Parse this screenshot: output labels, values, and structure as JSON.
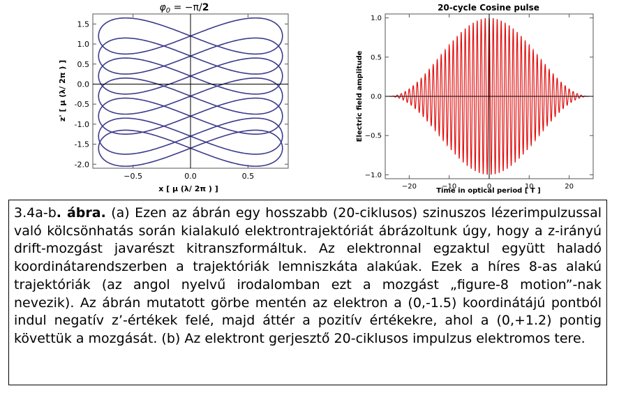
{
  "chart_data": [
    {
      "type": "line",
      "title": "φ0 = −π/2",
      "title_parts": {
        "phi": "φ",
        "sub": "0",
        "rest": " = −π/",
        "bold": "2"
      },
      "xlabel": "x [ μ (λ/ 2π ) ]",
      "ylabel": "z' [ μ (λ/ 2π ) ]",
      "xlim": [
        -0.85,
        0.85
      ],
      "ylim": [
        -2.1,
        1.75
      ],
      "xticks": [
        -0.5,
        0.0,
        0.5
      ],
      "xtick_labels": [
        "−0.5",
        "0.0",
        "0.5"
      ],
      "yticks": [
        1.5,
        1.0,
        0.5,
        0.0,
        -0.5,
        -1.0,
        -1.5,
        -2.0
      ],
      "ytick_labels": [
        "1.5",
        "1.0",
        "0.5",
        "0.0",
        "-0.5",
        "-1.0",
        "-1.5",
        "-2.0"
      ],
      "color": "#3b3b8c",
      "series": [
        {
          "center_z": 1.2,
          "x_amplitude": 0.8,
          "z_half_height": 0.45
        },
        {
          "center_z": 0.7,
          "x_amplitude": 0.8,
          "z_half_height": 0.45
        },
        {
          "center_z": 0.2,
          "x_amplitude": 0.8,
          "z_half_height": 0.45
        },
        {
          "center_z": -0.3,
          "x_amplitude": 0.8,
          "z_half_height": 0.45
        },
        {
          "center_z": -0.8,
          "x_amplitude": 0.8,
          "z_half_height": 0.45
        },
        {
          "center_z": -1.3,
          "x_amplitude": 0.8,
          "z_half_height": 0.45
        },
        {
          "center_z": -1.6,
          "x_amplitude": 0.8,
          "z_half_height": 0.45
        }
      ]
    },
    {
      "type": "line",
      "title": "20-cycle Cosine pulse",
      "xlabel": "Time in optical period [ T ]",
      "ylabel": "Electric field amplitude",
      "xlim": [
        -26,
        26
      ],
      "ylim": [
        -1.05,
        1.05
      ],
      "xticks": [
        -20,
        -10,
        0,
        10,
        20
      ],
      "xtick_labels": [
        "−20",
        "−10",
        "0",
        "10",
        "20"
      ],
      "yticks": [
        1.0,
        0.5,
        0.0,
        -0.5,
        -1.0
      ],
      "ytick_labels": [
        "1.0",
        "0.5",
        "0.0",
        "−0.5",
        "−1.0"
      ],
      "color": "#e01010",
      "series": [
        {
          "function": "cos(2π t) · cos²(π t / 50)",
          "t_range": [
            -25,
            25
          ],
          "cycles": 20,
          "peak_amplitude": 1.0
        }
      ]
    }
  ],
  "caption": {
    "label": "3.4a-b",
    "bold": ". ábra.",
    "text": " (a) Ezen az ábrán egy hosszabb (20-ciklusos) szinuszos lézerimpulzussal való kölcsönhatás során kialakuló elektrontrajektóriát ábrázoltunk úgy, hogy a z-irányú drift-mozgást javarészt kitranszformáltuk. Az elektronnal egzaktul együtt haladó koordinátarendszerben a trajektóriák lemniszkáta alakúak. Ezek a híres 8-as alakú trajektóriák (az angol nyelvű irodalomban ezt a mozgást „figure-8 motion”-nak nevezik). Az ábrán mutatott görbe mentén az elektron a (0,-1.5) koordinátájú pontból indul negatív z’-értékek felé, majd áttér a pozitív értékekre, ahol a (0,+1.2) pontig követtük a mozgását. (b) Az elektront gerjesztő 20-ciklusos impulzus elektromos tere."
  }
}
